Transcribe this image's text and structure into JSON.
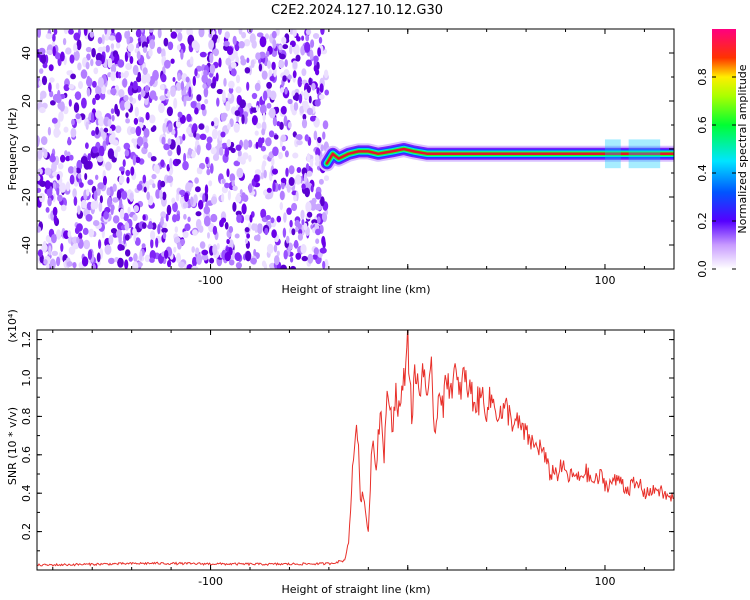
{
  "title": "C2E2.2024.127.10.12.G30",
  "chart_data": [
    {
      "type": "heatmap",
      "xlabel": "Height of straight line (km)",
      "ylabel": "Frequency (Hz)",
      "xlim": [
        -188,
        135
      ],
      "ylim": [
        -50,
        50
      ],
      "x_ticks": [
        -100,
        0,
        100
      ],
      "x_tick_labels": [
        "-100",
        "",
        "100"
      ],
      "y_ticks": [
        -40,
        -20,
        0,
        20,
        40
      ],
      "y_tick_labels": [
        "-40",
        "-20",
        "0",
        "20",
        "40"
      ],
      "noise_region_x": [
        -188,
        -41
      ],
      "signal_band": {
        "x_start": -41,
        "x_end": 135,
        "center_frequency_hz": -2,
        "points": [
          {
            "x": -41,
            "y": -6
          },
          {
            "x": -38,
            "y": -2
          },
          {
            "x": -35,
            "y": -4
          },
          {
            "x": -30,
            "y": -2
          },
          {
            "x": -25,
            "y": -1
          },
          {
            "x": -20,
            "y": -1
          },
          {
            "x": -15,
            "y": -2
          },
          {
            "x": -8,
            "y": -1
          },
          {
            "x": -2,
            "y": 0
          },
          {
            "x": 3,
            "y": -1
          },
          {
            "x": 10,
            "y": -2
          },
          {
            "x": 135,
            "y": -2
          }
        ]
      },
      "colorbar": {
        "label": "Normalized spectral amplitude",
        "range": [
          0,
          1
        ],
        "ticks": [
          0.0,
          0.2,
          0.4,
          0.6,
          0.8
        ],
        "tick_labels": [
          "0.0",
          "0.2",
          "0.4",
          "0.6",
          "0.8"
        ],
        "colors": [
          "#ffffff",
          "#8a00ff",
          "#0033ff",
          "#00ffff",
          "#00ff00",
          "#ffff00",
          "#ff0000",
          "#ff0090"
        ]
      }
    },
    {
      "type": "line",
      "xlabel": "Height of straight line (km)",
      "ylabel": "SNR (10 * v/v)",
      "y_multiplier": "(x10⁴)",
      "xlim": [
        -188,
        135
      ],
      "ylim": [
        0,
        12500
      ],
      "x_ticks": [
        -100,
        0,
        100
      ],
      "x_tick_labels": [
        "-100",
        "",
        "100"
      ],
      "y_ticks": [
        2000,
        4000,
        6000,
        8000,
        10000,
        12000
      ],
      "y_tick_labels": [
        "0.2",
        "0.4",
        "0.6",
        "0.8",
        "1.0",
        "1.2"
      ],
      "series": [
        {
          "color": "#e8302a",
          "x": [
            -188,
            -160,
            -130,
            -100,
            -70,
            -40,
            -32,
            -30,
            -28,
            -26,
            -24,
            -22,
            -20,
            -18,
            -16,
            -14,
            -12,
            -10,
            -8,
            -6,
            -4,
            -2,
            0,
            2,
            4,
            6,
            8,
            10,
            12,
            14,
            16,
            18,
            20,
            22,
            24,
            26,
            28,
            30,
            32,
            34,
            36,
            38,
            40,
            42,
            44,
            46,
            48,
            50,
            52,
            54,
            56,
            58,
            60,
            62,
            64,
            66,
            68,
            70,
            72,
            74,
            76,
            78,
            80,
            82,
            84,
            86,
            88,
            90,
            92,
            94,
            96,
            98,
            100,
            102,
            104,
            106,
            108,
            110,
            112,
            114,
            116,
            118,
            120,
            122,
            124,
            126,
            128,
            130,
            132,
            135
          ],
          "y": [
            250,
            300,
            350,
            320,
            300,
            330,
            500,
            1500,
            5000,
            8000,
            4000,
            3500,
            2000,
            7000,
            5500,
            8500,
            6000,
            9500,
            7500,
            9200,
            8200,
            9800,
            12300,
            8000,
            10500,
            9000,
            11000,
            8500,
            10200,
            7000,
            9800,
            8600,
            10100,
            9500,
            10300,
            9000,
            10100,
            9600,
            9300,
            8700,
            8800,
            9100,
            8400,
            8900,
            8600,
            8200,
            8100,
            8400,
            8000,
            7600,
            7600,
            7300,
            7000,
            6800,
            6400,
            6500,
            6300,
            5700,
            5000,
            5200,
            5000,
            5400,
            5100,
            4800,
            5000,
            4700,
            4900,
            5200,
            4800,
            4600,
            4700,
            4900,
            4500,
            4400,
            4700,
            4600,
            4800,
            4300,
            4200,
            4500,
            4300,
            4500,
            3900,
            4200,
            4000,
            4300,
            4100,
            3900,
            3800,
            3700
          ]
        }
      ]
    }
  ]
}
